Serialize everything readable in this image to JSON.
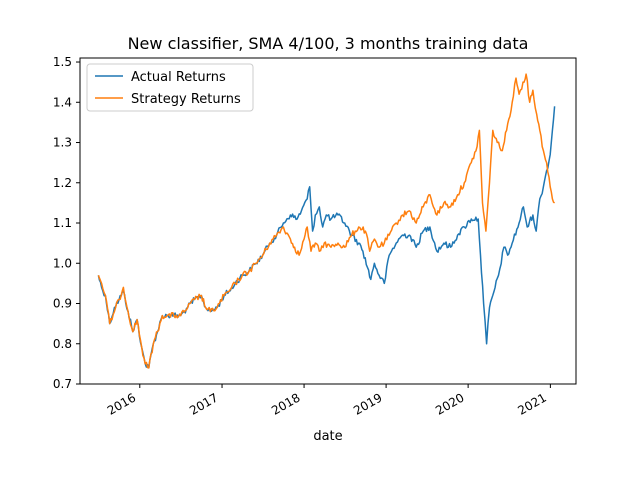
{
  "chart_data": {
    "type": "line",
    "title": "New classifier, SMA 4/100, 3 months training data",
    "xlabel": "date",
    "ylabel": "",
    "xlim": [
      "2015-04-10",
      "2021-04-25"
    ],
    "ylim": [
      0.7,
      1.51
    ],
    "x_ticks": [
      "2016-01-01",
      "2017-01-01",
      "2018-01-01",
      "2019-01-01",
      "2020-01-01",
      "2021-01-01"
    ],
    "x_tick_labels": [
      "2016",
      "2017",
      "2018",
      "2019",
      "2020",
      "2021"
    ],
    "y_ticks": [
      0.7,
      0.8,
      0.9,
      1.0,
      1.1,
      1.2,
      1.3,
      1.4,
      1.5
    ],
    "y_tick_labels": [
      "0.7",
      "0.8",
      "0.9",
      "1.0",
      "1.1",
      "1.2",
      "1.3",
      "1.4",
      "1.5"
    ],
    "grid": false,
    "legend": "top-left",
    "series": [
      {
        "name": "Actual Returns",
        "color": "#1f77b4",
        "points": [
          [
            "2015-07-01",
            0.97
          ],
          [
            "2015-07-15",
            0.94
          ],
          [
            "2015-08-01",
            0.92
          ],
          [
            "2015-08-20",
            0.85
          ],
          [
            "2015-09-10",
            0.89
          ],
          [
            "2015-10-01",
            0.91
          ],
          [
            "2015-10-20",
            0.93
          ],
          [
            "2015-11-10",
            0.88
          ],
          [
            "2015-12-01",
            0.83
          ],
          [
            "2015-12-20",
            0.86
          ],
          [
            "2016-01-10",
            0.79
          ],
          [
            "2016-01-25",
            0.75
          ],
          [
            "2016-02-10",
            0.74
          ],
          [
            "2016-03-01",
            0.8
          ],
          [
            "2016-03-20",
            0.83
          ],
          [
            "2016-04-10",
            0.87
          ],
          [
            "2016-05-01",
            0.87
          ],
          [
            "2016-06-01",
            0.87
          ],
          [
            "2016-07-01",
            0.87
          ],
          [
            "2016-08-01",
            0.89
          ],
          [
            "2016-09-01",
            0.91
          ],
          [
            "2016-10-01",
            0.92
          ],
          [
            "2016-10-20",
            0.89
          ],
          [
            "2016-11-10",
            0.88
          ],
          [
            "2016-12-10",
            0.89
          ],
          [
            "2017-01-10",
            0.92
          ],
          [
            "2017-02-01",
            0.93
          ],
          [
            "2017-03-01",
            0.95
          ],
          [
            "2017-04-01",
            0.97
          ],
          [
            "2017-05-01",
            0.98
          ],
          [
            "2017-06-01",
            1.0
          ],
          [
            "2017-07-01",
            1.02
          ],
          [
            "2017-08-01",
            1.05
          ],
          [
            "2017-09-01",
            1.07
          ],
          [
            "2017-10-01",
            1.1
          ],
          [
            "2017-11-01",
            1.12
          ],
          [
            "2017-12-01",
            1.11
          ],
          [
            "2017-12-20",
            1.13
          ],
          [
            "2018-01-15",
            1.16
          ],
          [
            "2018-01-26",
            1.19
          ],
          [
            "2018-02-08",
            1.08
          ],
          [
            "2018-02-20",
            1.12
          ],
          [
            "2018-03-10",
            1.14
          ],
          [
            "2018-03-25",
            1.09
          ],
          [
            "2018-04-10",
            1.12
          ],
          [
            "2018-05-01",
            1.11
          ],
          [
            "2018-06-01",
            1.12
          ],
          [
            "2018-07-01",
            1.1
          ],
          [
            "2018-08-01",
            1.07
          ],
          [
            "2018-09-01",
            1.05
          ],
          [
            "2018-09-20",
            1.03
          ],
          [
            "2018-10-10",
            0.99
          ],
          [
            "2018-10-25",
            0.96
          ],
          [
            "2018-11-10",
            1.0
          ],
          [
            "2018-12-01",
            0.97
          ],
          [
            "2018-12-24",
            0.95
          ],
          [
            "2019-01-15",
            1.02
          ],
          [
            "2019-02-15",
            1.05
          ],
          [
            "2019-03-15",
            1.07
          ],
          [
            "2019-04-15",
            1.07
          ],
          [
            "2019-05-15",
            1.04
          ],
          [
            "2019-06-15",
            1.08
          ],
          [
            "2019-07-15",
            1.09
          ],
          [
            "2019-08-15",
            1.03
          ],
          [
            "2019-09-15",
            1.05
          ],
          [
            "2019-10-15",
            1.04
          ],
          [
            "2019-11-15",
            1.07
          ],
          [
            "2019-12-15",
            1.09
          ],
          [
            "2020-01-15",
            1.11
          ],
          [
            "2020-02-15",
            1.11
          ],
          [
            "2020-02-25",
            1.02
          ],
          [
            "2020-03-10",
            0.9
          ],
          [
            "2020-03-23",
            0.8
          ],
          [
            "2020-04-05",
            0.89
          ],
          [
            "2020-04-25",
            0.93
          ],
          [
            "2020-05-15",
            0.97
          ],
          [
            "2020-06-08",
            1.04
          ],
          [
            "2020-06-25",
            1.02
          ],
          [
            "2020-07-15",
            1.05
          ],
          [
            "2020-08-15",
            1.1
          ],
          [
            "2020-09-03",
            1.14
          ],
          [
            "2020-09-20",
            1.09
          ],
          [
            "2020-10-15",
            1.12
          ],
          [
            "2020-10-30",
            1.08
          ],
          [
            "2020-11-15",
            1.16
          ],
          [
            "2020-12-01",
            1.19
          ],
          [
            "2020-12-15",
            1.23
          ],
          [
            "2020-12-31",
            1.27
          ],
          [
            "2021-01-10",
            1.33
          ],
          [
            "2021-01-20",
            1.39
          ]
        ]
      },
      {
        "name": "Strategy Returns",
        "color": "#ff7f0e",
        "points": [
          [
            "2015-07-01",
            0.97
          ],
          [
            "2015-07-15",
            0.95
          ],
          [
            "2015-08-01",
            0.92
          ],
          [
            "2015-08-20",
            0.85
          ],
          [
            "2015-09-10",
            0.88
          ],
          [
            "2015-10-01",
            0.91
          ],
          [
            "2015-10-20",
            0.94
          ],
          [
            "2015-11-10",
            0.88
          ],
          [
            "2015-12-01",
            0.83
          ],
          [
            "2015-12-20",
            0.86
          ],
          [
            "2016-01-10",
            0.79
          ],
          [
            "2016-01-25",
            0.75
          ],
          [
            "2016-02-10",
            0.74
          ],
          [
            "2016-03-01",
            0.8
          ],
          [
            "2016-03-20",
            0.83
          ],
          [
            "2016-04-10",
            0.87
          ],
          [
            "2016-05-01",
            0.87
          ],
          [
            "2016-06-01",
            0.87
          ],
          [
            "2016-07-01",
            0.87
          ],
          [
            "2016-08-01",
            0.89
          ],
          [
            "2016-09-01",
            0.91
          ],
          [
            "2016-10-01",
            0.92
          ],
          [
            "2016-10-20",
            0.89
          ],
          [
            "2016-11-10",
            0.88
          ],
          [
            "2016-12-10",
            0.89
          ],
          [
            "2017-01-10",
            0.92
          ],
          [
            "2017-02-01",
            0.93
          ],
          [
            "2017-03-01",
            0.95
          ],
          [
            "2017-04-01",
            0.97
          ],
          [
            "2017-05-01",
            0.98
          ],
          [
            "2017-06-01",
            1.0
          ],
          [
            "2017-07-01",
            1.02
          ],
          [
            "2017-08-01",
            1.05
          ],
          [
            "2017-09-01",
            1.07
          ],
          [
            "2017-10-01",
            1.09
          ],
          [
            "2017-11-01",
            1.06
          ],
          [
            "2017-11-20",
            1.04
          ],
          [
            "2017-12-10",
            1.02
          ],
          [
            "2018-01-01",
            1.06
          ],
          [
            "2018-01-15",
            1.09
          ],
          [
            "2018-02-01",
            1.03
          ],
          [
            "2018-02-20",
            1.05
          ],
          [
            "2018-03-10",
            1.03
          ],
          [
            "2018-04-01",
            1.05
          ],
          [
            "2018-05-01",
            1.04
          ],
          [
            "2018-06-01",
            1.05
          ],
          [
            "2018-07-01",
            1.04
          ],
          [
            "2018-08-01",
            1.07
          ],
          [
            "2018-09-01",
            1.09
          ],
          [
            "2018-10-01",
            1.08
          ],
          [
            "2018-10-20",
            1.03
          ],
          [
            "2018-11-10",
            1.06
          ],
          [
            "2018-12-01",
            1.04
          ],
          [
            "2018-12-24",
            1.05
          ],
          [
            "2019-01-15",
            1.07
          ],
          [
            "2019-02-15",
            1.1
          ],
          [
            "2019-03-15",
            1.12
          ],
          [
            "2019-04-15",
            1.13
          ],
          [
            "2019-05-15",
            1.1
          ],
          [
            "2019-06-15",
            1.14
          ],
          [
            "2019-07-15",
            1.17
          ],
          [
            "2019-08-15",
            1.12
          ],
          [
            "2019-09-15",
            1.15
          ],
          [
            "2019-10-15",
            1.14
          ],
          [
            "2019-11-15",
            1.17
          ],
          [
            "2019-12-15",
            1.2
          ],
          [
            "2020-01-15",
            1.25
          ],
          [
            "2020-02-10",
            1.29
          ],
          [
            "2020-02-20",
            1.33
          ],
          [
            "2020-03-05",
            1.15
          ],
          [
            "2020-03-20",
            1.08
          ],
          [
            "2020-04-05",
            1.2
          ],
          [
            "2020-04-20",
            1.33
          ],
          [
            "2020-05-10",
            1.3
          ],
          [
            "2020-06-01",
            1.28
          ],
          [
            "2020-06-20",
            1.33
          ],
          [
            "2020-07-15",
            1.4
          ],
          [
            "2020-08-01",
            1.46
          ],
          [
            "2020-08-15",
            1.42
          ],
          [
            "2020-09-01",
            1.45
          ],
          [
            "2020-09-15",
            1.47
          ],
          [
            "2020-10-01",
            1.4
          ],
          [
            "2020-10-15",
            1.43
          ],
          [
            "2020-11-01",
            1.37
          ],
          [
            "2020-11-15",
            1.33
          ],
          [
            "2020-12-01",
            1.28
          ],
          [
            "2020-12-15",
            1.25
          ],
          [
            "2020-12-31",
            1.19
          ],
          [
            "2021-01-10",
            1.16
          ],
          [
            "2021-01-20",
            1.15
          ]
        ]
      }
    ]
  }
}
